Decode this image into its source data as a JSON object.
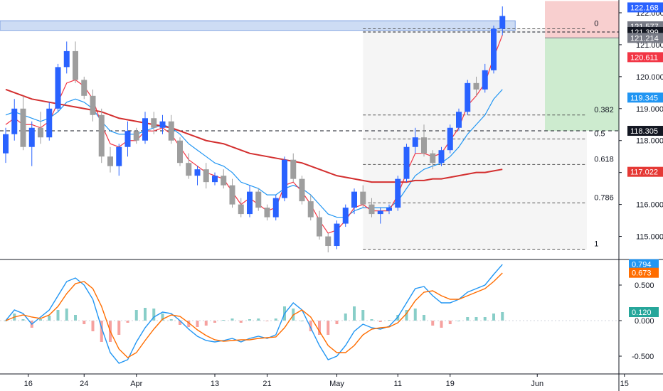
{
  "chart_data": [
    {
      "type": "candlestick",
      "title": "",
      "x_ticks": [
        {
          "label": "16",
          "idx": 3
        },
        {
          "label": "24",
          "idx": 9
        },
        {
          "label": "Apr",
          "idx": 15
        },
        {
          "label": "13",
          "idx": 24
        },
        {
          "label": "21",
          "idx": 30
        },
        {
          "label": "May",
          "idx": 38
        },
        {
          "label": "11",
          "idx": 45
        },
        {
          "label": "19",
          "idx": 51
        },
        {
          "label": "Jun",
          "idx": 61
        },
        {
          "label": "15",
          "idx": 71
        }
      ],
      "y_range": [
        114.3,
        122.4
      ],
      "y_ticks": [
        "115.000",
        "116.000",
        "117.000",
        "118.000",
        "119.000",
        "120.000",
        "121.000",
        "122.000"
      ],
      "price_tags": [
        {
          "label": "122.168",
          "value": 122.168,
          "color": "#2962ff"
        },
        {
          "label": "121.577",
          "value": 121.577,
          "color": "#787b86"
        },
        {
          "label": "121.399",
          "value": 121.399,
          "color": "#131722"
        },
        {
          "label": "121.214",
          "value": 121.214,
          "color": "#787b86"
        },
        {
          "label": "120.611",
          "value": 120.611,
          "color": "#f23645"
        },
        {
          "label": "119.345",
          "value": 119.345,
          "color": "#2196f3"
        },
        {
          "label": "118.305",
          "value": 118.305,
          "color": "#131722"
        },
        {
          "label": "117.022",
          "value": 117.022,
          "color": "#e53935"
        }
      ],
      "candles": [
        [
          117.6,
          118.4,
          117.3,
          118.2
        ],
        [
          118.2,
          119.3,
          118.0,
          119.0
        ],
        [
          119.0,
          119.4,
          117.7,
          117.8
        ],
        [
          117.8,
          118.6,
          117.2,
          118.4
        ],
        [
          118.4,
          118.9,
          117.9,
          118.1
        ],
        [
          118.1,
          119.2,
          118.0,
          119.0
        ],
        [
          119.0,
          120.4,
          118.9,
          120.3
        ],
        [
          120.3,
          121.1,
          120.1,
          120.8
        ],
        [
          120.8,
          121.1,
          119.8,
          119.9
        ],
        [
          119.9,
          120.0,
          119.3,
          119.4
        ],
        [
          119.4,
          119.6,
          118.6,
          118.8
        ],
        [
          118.8,
          119.0,
          117.3,
          117.5
        ],
        [
          117.5,
          117.8,
          117.0,
          117.2
        ],
        [
          117.2,
          117.9,
          116.9,
          117.8
        ],
        [
          117.8,
          118.6,
          117.5,
          118.3
        ],
        [
          118.3,
          118.4,
          117.9,
          118.0
        ],
        [
          118.0,
          118.9,
          117.9,
          118.7
        ],
        [
          118.7,
          118.9,
          118.2,
          118.4
        ],
        [
          118.4,
          118.8,
          118.2,
          118.6
        ],
        [
          118.6,
          118.8,
          117.9,
          118.0
        ],
        [
          118.0,
          118.1,
          117.2,
          117.3
        ],
        [
          117.3,
          117.6,
          116.8,
          116.9
        ],
        [
          116.9,
          117.2,
          116.6,
          117.1
        ],
        [
          117.1,
          117.3,
          116.5,
          116.7
        ],
        [
          116.7,
          117.0,
          116.6,
          116.9
        ],
        [
          116.9,
          117.1,
          116.5,
          116.6
        ],
        [
          116.6,
          116.8,
          115.9,
          116.0
        ],
        [
          116.0,
          116.2,
          115.6,
          115.7
        ],
        [
          115.7,
          116.6,
          115.6,
          116.4
        ],
        [
          116.4,
          116.5,
          115.8,
          115.9
        ],
        [
          115.9,
          116.0,
          115.5,
          115.6
        ],
        [
          115.6,
          116.3,
          115.5,
          116.2
        ],
        [
          116.2,
          117.5,
          116.1,
          117.4
        ],
        [
          117.4,
          117.6,
          116.7,
          116.8
        ],
        [
          116.8,
          116.9,
          116.0,
          116.1
        ],
        [
          116.1,
          116.3,
          115.5,
          115.6
        ],
        [
          115.6,
          115.8,
          114.9,
          115.0
        ],
        [
          115.0,
          115.1,
          114.5,
          114.7
        ],
        [
          114.7,
          115.5,
          114.6,
          115.4
        ],
        [
          115.4,
          116.0,
          115.3,
          115.9
        ],
        [
          115.9,
          116.5,
          115.7,
          116.4
        ],
        [
          116.4,
          116.6,
          115.9,
          116.0
        ],
        [
          116.0,
          116.2,
          115.6,
          115.7
        ],
        [
          115.7,
          115.9,
          115.4,
          115.8
        ],
        [
          115.8,
          116.0,
          115.7,
          115.9
        ],
        [
          115.9,
          116.9,
          115.8,
          116.8
        ],
        [
          116.8,
          117.9,
          116.7,
          117.8
        ],
        [
          117.8,
          118.4,
          117.6,
          118.1
        ],
        [
          118.1,
          118.5,
          117.5,
          117.6
        ],
        [
          117.6,
          117.7,
          117.1,
          117.3
        ],
        [
          117.3,
          117.8,
          117.2,
          117.7
        ],
        [
          117.7,
          118.5,
          117.6,
          118.4
        ],
        [
          118.4,
          119.0,
          118.3,
          118.9
        ],
        [
          118.9,
          119.9,
          118.8,
          119.8
        ],
        [
          119.8,
          120.0,
          119.4,
          119.6
        ],
        [
          119.6,
          120.4,
          119.5,
          120.2
        ],
        [
          120.2,
          121.6,
          120.1,
          121.5
        ],
        [
          121.5,
          122.2,
          121.3,
          121.9
        ]
      ],
      "series": [
        {
          "name": "",
          "color": "#2196f3",
          "values": [
            118.8,
            118.9,
            118.8,
            118.7,
            118.6,
            118.7,
            118.9,
            119.2,
            119.3,
            119.2,
            119.0,
            118.6,
            118.3,
            118.2,
            118.2,
            118.2,
            118.3,
            118.4,
            118.5,
            118.4,
            118.2,
            117.9,
            117.7,
            117.5,
            117.3,
            117.2,
            117.0,
            116.7,
            116.6,
            116.5,
            116.3,
            116.3,
            116.5,
            116.6,
            116.5,
            116.3,
            116.0,
            115.7,
            115.6,
            115.6,
            115.8,
            115.9,
            115.9,
            115.9,
            115.9,
            116.1,
            116.5,
            116.9,
            117.1,
            117.2,
            117.3,
            117.5,
            117.8,
            118.2,
            118.5,
            118.8,
            119.3,
            119.6
          ]
        },
        {
          "name": "",
          "color": "#f23645",
          "values": [
            118.5,
            118.7,
            118.5,
            118.5,
            118.4,
            118.6,
            119.2,
            119.8,
            119.9,
            119.7,
            119.3,
            118.5,
            117.9,
            117.8,
            118.0,
            118.0,
            118.3,
            118.3,
            118.4,
            118.2,
            117.8,
            117.4,
            117.2,
            117.0,
            116.9,
            116.8,
            116.4,
            116.0,
            116.2,
            116.0,
            115.8,
            115.9,
            116.6,
            116.7,
            116.4,
            116.0,
            115.5,
            115.1,
            115.2,
            115.5,
            115.9,
            116.0,
            115.8,
            115.8,
            115.8,
            116.3,
            117.0,
            117.6,
            117.6,
            117.5,
            117.6,
            118.0,
            118.4,
            119.1,
            119.4,
            119.8,
            120.6,
            121.3
          ]
        },
        {
          "name": "",
          "color": "#d32f2f",
          "values": [
            119.6,
            119.5,
            119.4,
            119.3,
            119.25,
            119.2,
            119.15,
            119.1,
            119.05,
            119.0,
            118.95,
            118.9,
            118.8,
            118.7,
            118.65,
            118.6,
            118.55,
            118.5,
            118.45,
            118.4,
            118.3,
            118.2,
            118.1,
            118.0,
            117.95,
            117.9,
            117.8,
            117.7,
            117.6,
            117.55,
            117.5,
            117.45,
            117.4,
            117.35,
            117.3,
            117.2,
            117.1,
            117.0,
            116.9,
            116.85,
            116.8,
            116.75,
            116.7,
            116.7,
            116.7,
            116.7,
            116.7,
            116.75,
            116.75,
            116.8,
            116.8,
            116.85,
            116.9,
            116.95,
            117.0,
            117.0,
            117.05,
            117.1
          ]
        }
      ],
      "fib_levels": [
        {
          "label": "0",
          "value": 121.5
        },
        {
          "label": "0.382",
          "value": 118.8
        },
        {
          "label": "0.5",
          "value": 118.05
        },
        {
          "label": "0.618",
          "value": 117.25
        },
        {
          "label": "0.786",
          "value": 116.05
        },
        {
          "label": "1",
          "value": 114.6
        }
      ],
      "horizontal_line": 118.305,
      "resistance_zone": [
        121.45,
        121.75
      ],
      "position": {
        "entry": 121.214,
        "stop": 122.168,
        "target": 118.305
      }
    },
    {
      "type": "macd",
      "y_range": [
        -0.75,
        0.85
      ],
      "y_ticks": [
        "0.500",
        "0.000",
        "-0.500"
      ],
      "price_tags": [
        {
          "label": "0.794",
          "value": 0.794,
          "color": "#2196f3"
        },
        {
          "label": "0.673",
          "value": 0.673,
          "color": "#ff6d00"
        },
        {
          "label": "0.120",
          "value": 0.12,
          "color": "#26a69a"
        }
      ],
      "macd": [
        0.0,
        0.15,
        0.1,
        -0.05,
        0.05,
        0.15,
        0.35,
        0.55,
        0.6,
        0.5,
        0.3,
        -0.1,
        -0.45,
        -0.6,
        -0.55,
        -0.3,
        -0.1,
        0.05,
        0.12,
        0.1,
        0.0,
        -0.12,
        -0.22,
        -0.28,
        -0.3,
        -0.28,
        -0.25,
        -0.3,
        -0.25,
        -0.22,
        -0.25,
        -0.2,
        0.1,
        0.25,
        0.15,
        -0.1,
        -0.35,
        -0.55,
        -0.5,
        -0.35,
        -0.15,
        -0.05,
        -0.1,
        -0.12,
        -0.08,
        0.05,
        0.25,
        0.45,
        0.48,
        0.35,
        0.25,
        0.25,
        0.3,
        0.4,
        0.45,
        0.5,
        0.65,
        0.79
      ],
      "signal": [
        0.0,
        0.05,
        0.08,
        0.05,
        0.03,
        0.08,
        0.2,
        0.38,
        0.52,
        0.55,
        0.45,
        0.2,
        -0.15,
        -0.4,
        -0.52,
        -0.45,
        -0.28,
        -0.12,
        0.02,
        0.08,
        0.06,
        -0.03,
        -0.13,
        -0.21,
        -0.27,
        -0.29,
        -0.28,
        -0.27,
        -0.27,
        -0.25,
        -0.24,
        -0.23,
        -0.1,
        0.08,
        0.15,
        0.05,
        -0.15,
        -0.35,
        -0.45,
        -0.45,
        -0.35,
        -0.2,
        -0.12,
        -0.1,
        -0.09,
        -0.03,
        0.1,
        0.28,
        0.4,
        0.42,
        0.35,
        0.3,
        0.3,
        0.35,
        0.4,
        0.45,
        0.55,
        0.67
      ]
    }
  ]
}
